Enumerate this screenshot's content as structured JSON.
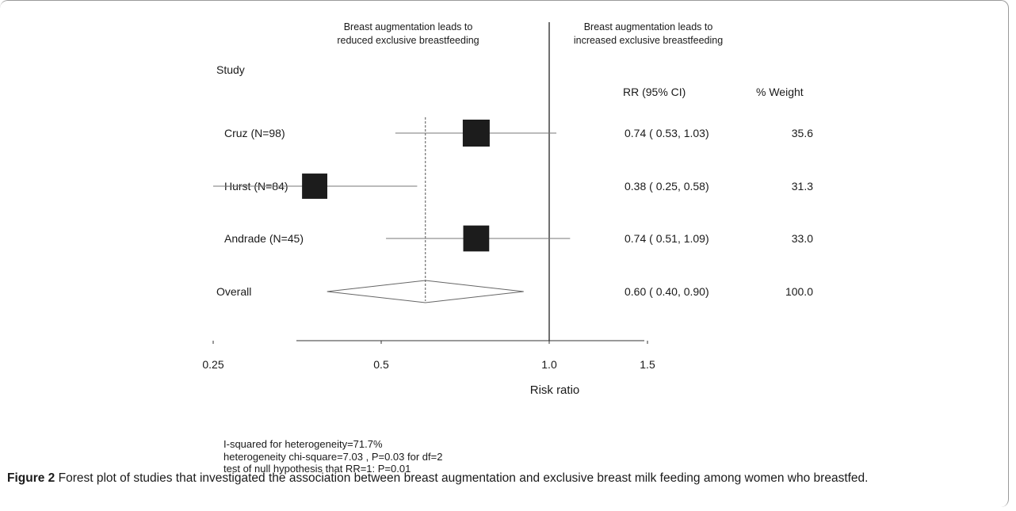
{
  "chart_data": {
    "type": "forest",
    "header_left": [
      "Breast augmentation leads to",
      "reduced exclusive breastfeeding"
    ],
    "header_right": [
      "Breast augmentation leads to",
      "increased exclusive breastfeeding"
    ],
    "col_study": "Study",
    "col_rr": "RR (95% CI)",
    "col_weight": "% Weight",
    "xlabel": "Risk ratio",
    "x_ticks": [
      {
        "value": 0.25,
        "label": "0.25"
      },
      {
        "value": 0.5,
        "label": "0.5"
      },
      {
        "value": 1.0,
        "label": "1.0"
      },
      {
        "value": 1.5,
        "label": "1.5"
      }
    ],
    "studies": [
      {
        "label": "Cruz (N=98)",
        "rr": 0.74,
        "lo": 0.53,
        "hi": 1.03,
        "rr_text": "0.74 ( 0.53, 1.03)",
        "weight": 35.6,
        "weight_text": "35.6"
      },
      {
        "label": "Hurst (N=84)",
        "rr": 0.38,
        "lo": 0.25,
        "hi": 0.58,
        "rr_text": "0.38 ( 0.25, 0.58)",
        "weight": 31.3,
        "weight_text": "31.3"
      },
      {
        "label": "Andrade (N=45)",
        "rr": 0.74,
        "lo": 0.51,
        "hi": 1.09,
        "rr_text": "0.74 ( 0.51, 1.09)",
        "weight": 33.0,
        "weight_text": "33.0"
      }
    ],
    "overall": {
      "label": "Overall",
      "rr": 0.6,
      "lo": 0.4,
      "hi": 0.9,
      "rr_text": "0.60 ( 0.40, 0.90)",
      "weight_text": "100.0"
    },
    "null_value": 1.0
  },
  "footnotes": [
    "I-squared for heterogeneity=71.7%",
    "heterogeneity chi-square=7.03 , P=0.03 for df=2",
    "test of null hypothesis that RR=1:  P=0.01"
  ],
  "caption": {
    "label": "Figure 2",
    "text": " Forest plot of studies that investigated the association between breast augmentation and exclusive breast milk feeding among women who breastfed."
  }
}
